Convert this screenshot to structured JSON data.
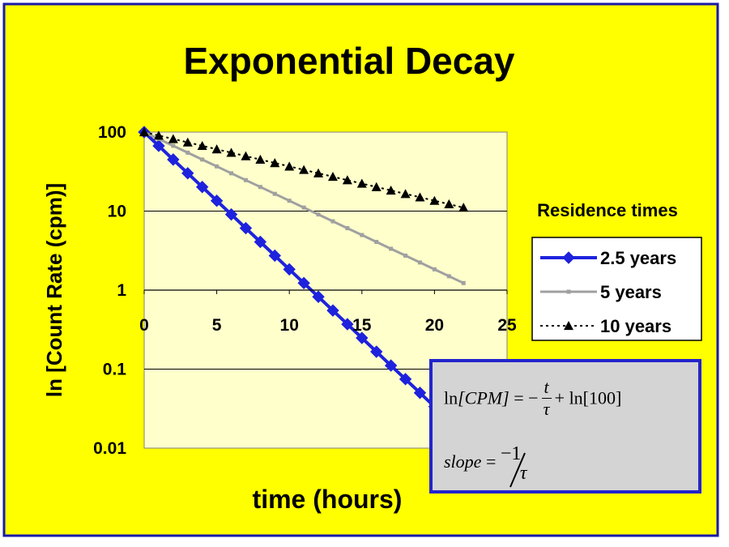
{
  "colors": {
    "background": "#ffff00",
    "frame": "#1a1aa8",
    "plot_area": "#ffffcc",
    "series_2_5": "#1e22dd",
    "series_5": "#a0a0a0",
    "series_10": "#000000",
    "formula_box_bg": "#d4d4d4",
    "formula_box_border": "#2424cc"
  },
  "chart_data": {
    "type": "line",
    "title": "Exponential Decay",
    "xlabel": "time (hours)",
    "ylabel": "ln [Count Rate (cpm)]",
    "x_scale": "linear",
    "y_scale": "log",
    "xlim": [
      0,
      25
    ],
    "ylim": [
      0.01,
      100
    ],
    "x_ticks": [
      "0",
      "5",
      "10",
      "15",
      "20",
      "25"
    ],
    "y_ticks": [
      "0.01",
      "0.1",
      "1",
      "10",
      "100"
    ],
    "grid": "horizontal",
    "legend_title": "Residence times",
    "legend_position": "right",
    "x": [
      0,
      1,
      2,
      3,
      4,
      5,
      6,
      7,
      8,
      9,
      10,
      11,
      12,
      13,
      14,
      15,
      16,
      17,
      18,
      19,
      20,
      21,
      22
    ],
    "series": [
      {
        "name": "2.5 years",
        "marker": "diamond",
        "values": [
          100,
          67.03,
          44.93,
          30.12,
          20.19,
          13.53,
          9.07,
          6.081,
          4.076,
          2.732,
          1.832,
          1.228,
          0.823,
          0.552,
          0.37,
          0.248,
          0.166,
          0.111,
          0.0747,
          0.0501,
          0.0335,
          0.0225,
          0.0151
        ]
      },
      {
        "name": "5 years",
        "marker": "square",
        "values": [
          100,
          81.87,
          67.03,
          54.88,
          44.93,
          36.79,
          30.12,
          24.66,
          20.19,
          16.53,
          13.53,
          11.08,
          9.07,
          7.427,
          6.081,
          4.979,
          4.076,
          3.337,
          2.732,
          2.237,
          1.832,
          1.5,
          1.228
        ]
      },
      {
        "name": "10 years",
        "marker": "triangle",
        "values": [
          100,
          90.48,
          81.87,
          74.08,
          67.03,
          60.65,
          54.88,
          49.66,
          44.93,
          40.66,
          36.79,
          33.29,
          30.12,
          27.25,
          24.66,
          22.31,
          20.19,
          18.27,
          16.53,
          14.96,
          13.53,
          12.25,
          11.08
        ]
      }
    ]
  },
  "formula": {
    "ln1": "ln",
    "lhs": "[CPM]",
    "eq1": "=",
    "minus1": "−",
    "t": "t",
    "tau1": "τ",
    "plus_ln": "+ ln[100]",
    "slope": "slope",
    "eq2": "=",
    "neg_one": "−1",
    "tau2": "τ"
  }
}
